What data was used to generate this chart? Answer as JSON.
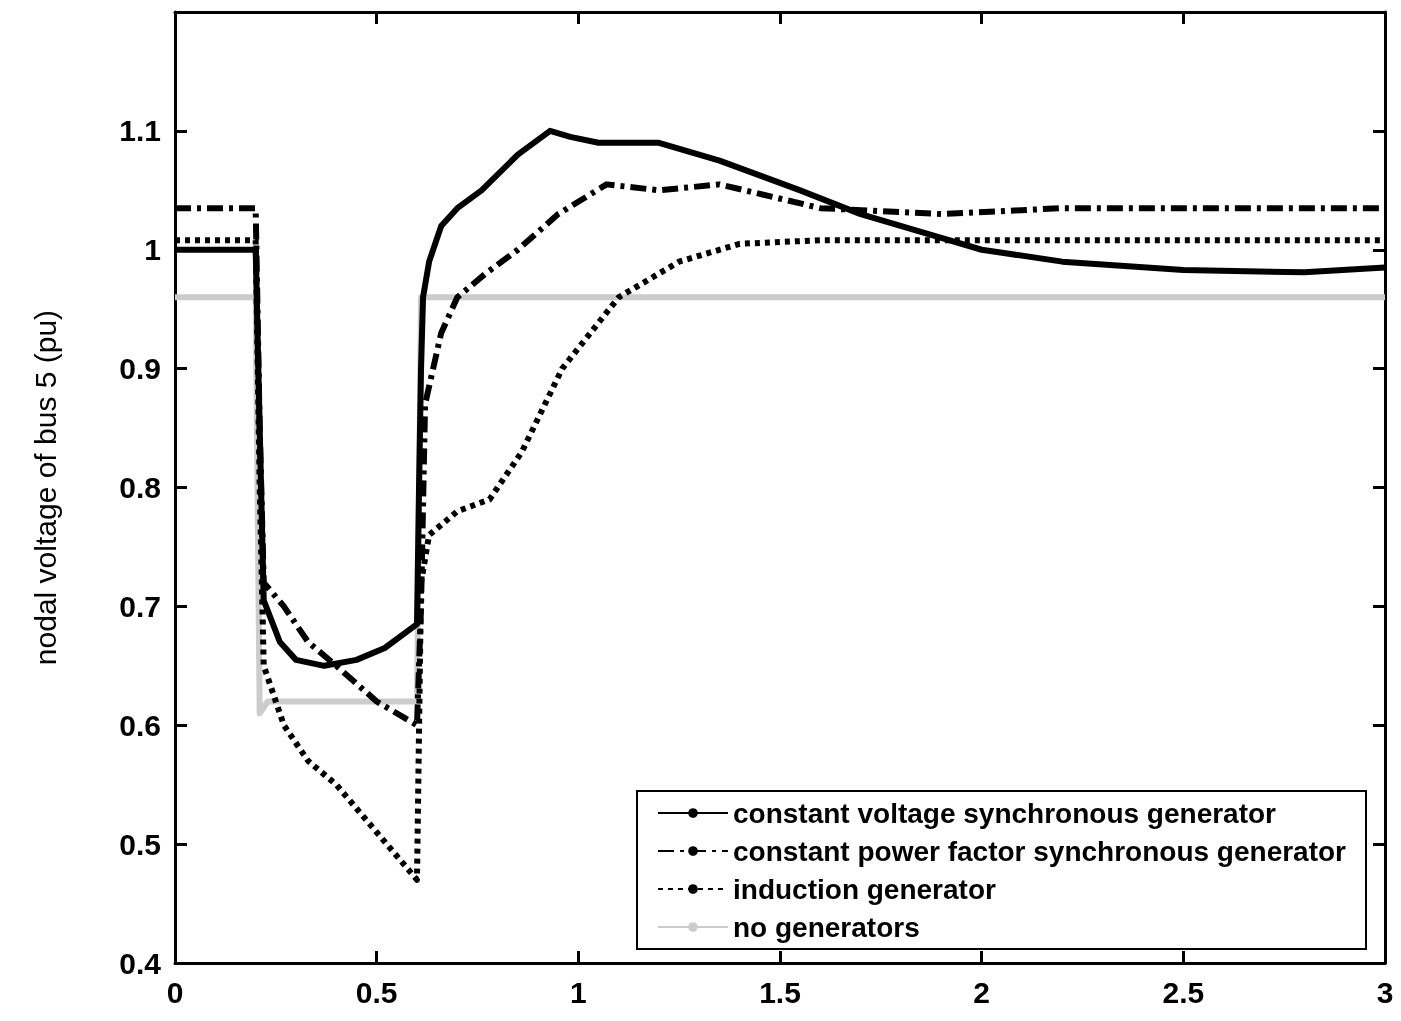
{
  "chart_data": {
    "type": "line",
    "ylabel": "nodal voltage of bus 5 (pu)",
    "xlim": [
      0,
      3
    ],
    "xticks": [
      0,
      0.5,
      1,
      1.5,
      2,
      2.5,
      3
    ],
    "ylim": [
      0.4,
      1.2
    ],
    "yticks": [
      0.4,
      0.5,
      0.6,
      0.7,
      0.8,
      0.9,
      1,
      1.1
    ],
    "grid": false,
    "legend": "bottom right",
    "marker": "none",
    "series": [
      {
        "name": "constant voltage synchronous generator",
        "color": "#000000",
        "line_style": "solid",
        "x": [
          0,
          0.2,
          0.21,
          0.22,
          0.26,
          0.3,
          0.37,
          0.45,
          0.52,
          0.6,
          0.605,
          0.61,
          0.615,
          0.63,
          0.66,
          0.7,
          0.76,
          0.85,
          0.93,
          0.98,
          1.05,
          1.2,
          1.35,
          1.55,
          1.7,
          1.9,
          2.0,
          2.2,
          2.5,
          2.8,
          3
        ],
        "values": [
          1.0,
          1.0,
          0.85,
          0.705,
          0.67,
          0.655,
          0.65,
          0.655,
          0.665,
          0.685,
          0.8,
          0.9,
          0.96,
          0.99,
          1.02,
          1.035,
          1.05,
          1.08,
          1.1,
          1.095,
          1.09,
          1.09,
          1.075,
          1.05,
          1.03,
          1.01,
          1.0,
          0.99,
          0.983,
          0.981,
          0.985
        ]
      },
      {
        "name": "constant power factor synchronous generator",
        "color": "#000000",
        "line_style": "dashdot",
        "x": [
          0,
          0.2,
          0.21,
          0.22,
          0.27,
          0.33,
          0.4,
          0.5,
          0.6,
          0.61,
          0.62,
          0.66,
          0.7,
          0.77,
          0.85,
          0.95,
          1.07,
          1.2,
          1.35,
          1.6,
          1.9,
          2.2,
          2.6,
          3
        ],
        "values": [
          1.035,
          1.035,
          0.85,
          0.72,
          0.7,
          0.67,
          0.65,
          0.62,
          0.6,
          0.7,
          0.87,
          0.93,
          0.96,
          0.98,
          1.0,
          1.03,
          1.055,
          1.05,
          1.055,
          1.035,
          1.03,
          1.035,
          1.035,
          1.035
        ]
      },
      {
        "name": "induction generator",
        "color": "#000000",
        "line_style": "dotted",
        "x": [
          0,
          0.2,
          0.21,
          0.22,
          0.27,
          0.33,
          0.4,
          0.5,
          0.6,
          0.61,
          0.63,
          0.7,
          0.78,
          0.86,
          0.96,
          1.1,
          1.25,
          1.4,
          1.6,
          2.0,
          2.5,
          3
        ],
        "values": [
          1.008,
          1.008,
          0.8,
          0.65,
          0.6,
          0.57,
          0.55,
          0.51,
          0.47,
          0.72,
          0.76,
          0.78,
          0.79,
          0.83,
          0.9,
          0.96,
          0.99,
          1.005,
          1.008,
          1.008,
          1.008,
          1.008
        ]
      },
      {
        "name": "no generators",
        "color": "#cccccc",
        "line_style": "solid",
        "x": [
          0,
          0.2,
          0.21,
          0.23,
          0.25,
          0.6,
          0.61,
          1,
          2,
          3
        ],
        "values": [
          0.96,
          0.96,
          0.61,
          0.62,
          0.62,
          0.62,
          0.96,
          0.96,
          0.96,
          0.96
        ]
      }
    ]
  }
}
